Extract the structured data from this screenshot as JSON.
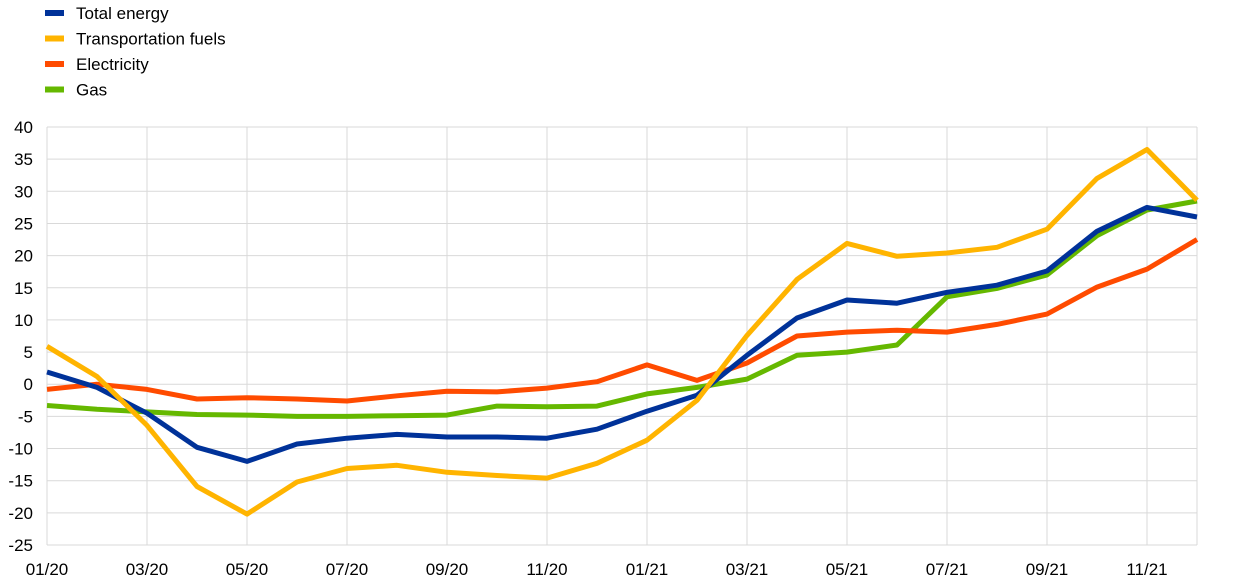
{
  "chart_data": {
    "type": "line",
    "title": "",
    "xlabel": "",
    "ylabel": "",
    "ylim": [
      -25,
      40
    ],
    "yticks": [
      40,
      35,
      30,
      25,
      20,
      15,
      10,
      5,
      0,
      -5,
      -10,
      -15,
      -20,
      -25
    ],
    "grid": true,
    "legend_placement": "top-left",
    "x": [
      "01/20",
      "02/20",
      "03/20",
      "04/20",
      "05/20",
      "06/20",
      "07/20",
      "08/20",
      "09/20",
      "10/20",
      "11/20",
      "12/20",
      "01/21",
      "02/21",
      "03/21",
      "04/21",
      "05/21",
      "06/21",
      "07/21",
      "08/21",
      "09/21",
      "10/21",
      "11/21",
      "12/21"
    ],
    "xtick_labels": [
      "01/20",
      "03/20",
      "05/20",
      "07/20",
      "09/20",
      "11/20",
      "01/21",
      "03/21",
      "05/21",
      "07/21",
      "09/21",
      "11/21"
    ],
    "series": [
      {
        "name": "Total energy",
        "color": "#003299",
        "values": [
          1.9,
          -0.5,
          -4.5,
          -9.8,
          -12,
          -9.3,
          -8.4,
          -7.8,
          -8.2,
          -8.2,
          -8.4,
          -7,
          -4.2,
          -1.7,
          4.5,
          10.3,
          13.1,
          12.6,
          14.3,
          15.4,
          17.6,
          23.8,
          27.5,
          26
        ]
      },
      {
        "name": "Transportation fuels",
        "color": "#FFB400",
        "values": [
          5.9,
          1.2,
          -6.4,
          -15.9,
          -20.2,
          -15.2,
          -13.1,
          -12.6,
          -13.7,
          -14.2,
          -14.6,
          -12.3,
          -8.7,
          -2.5,
          7.6,
          16.3,
          21.9,
          19.9,
          20.4,
          21.3,
          24.1,
          32,
          36.5,
          28.6
        ]
      },
      {
        "name": "Electricity",
        "color": "#FF4B00",
        "values": [
          -0.8,
          0,
          -0.8,
          -2.3,
          -2.1,
          -2.3,
          -2.6,
          -1.8,
          -1.1,
          -1.2,
          -0.6,
          0.4,
          3,
          0.6,
          3.3,
          7.5,
          8.1,
          8.4,
          8.1,
          9.3,
          10.9,
          15.1,
          17.9,
          22.5
        ]
      },
      {
        "name": "Gas",
        "color": "#65B800",
        "values": [
          -3.3,
          -3.9,
          -4.3,
          -4.7,
          -4.8,
          -5,
          -5,
          -4.9,
          -4.8,
          -3.4,
          -3.5,
          -3.4,
          -1.5,
          -0.5,
          0.8,
          4.5,
          5,
          6.1,
          13.6,
          14.9,
          17,
          23.1,
          27.1,
          28.5
        ]
      }
    ]
  }
}
